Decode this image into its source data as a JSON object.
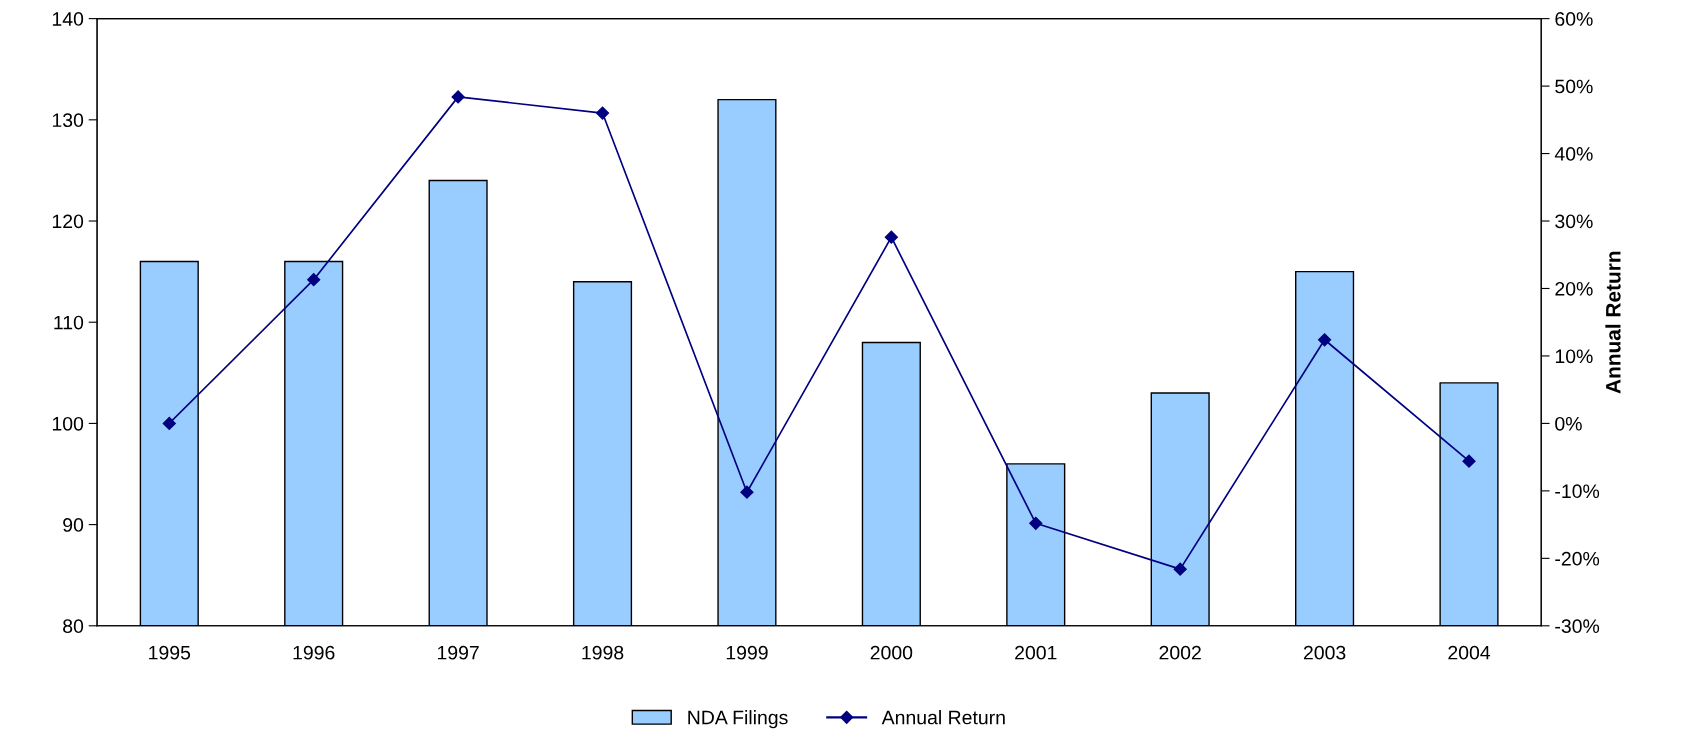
{
  "chart_data": {
    "type": "bar",
    "categories": [
      "1995",
      "1996",
      "1997",
      "1998",
      "1999",
      "2000",
      "2001",
      "2002",
      "2003",
      "2004"
    ],
    "series": [
      {
        "name": "NDA Filings",
        "color": "#99ccff",
        "values": [
          116,
          116,
          124,
          114,
          132,
          108,
          96,
          103,
          115,
          104
        ]
      },
      {
        "name": "Annual Return",
        "type": "line",
        "axis": "y2",
        "color": "#000080",
        "marker": "diamond",
        "values": [
          0,
          21.3,
          48.4,
          46,
          -10.2,
          27.6,
          -14.8,
          -21.6,
          12.4,
          -5.6
        ]
      }
    ],
    "y2label": "Annual Return",
    "ylim": [
      80,
      140
    ],
    "yticks": [
      80,
      90,
      100,
      110,
      120,
      130,
      140
    ],
    "y2lim": [
      -30,
      60
    ],
    "y2ticks": [
      {
        "value": -30,
        "label": "-30%"
      },
      {
        "value": -20,
        "label": "-20%"
      },
      {
        "value": -10,
        "label": "-10%"
      },
      {
        "value": 0,
        "label": "0%"
      },
      {
        "value": 10,
        "label": "10%"
      },
      {
        "value": 20,
        "label": "20%"
      },
      {
        "value": 30,
        "label": "30%"
      },
      {
        "value": 40,
        "label": "40%"
      },
      {
        "value": 50,
        "label": "50%"
      },
      {
        "value": 60,
        "label": "60%"
      }
    ],
    "grid": false,
    "legend": "bottom"
  }
}
